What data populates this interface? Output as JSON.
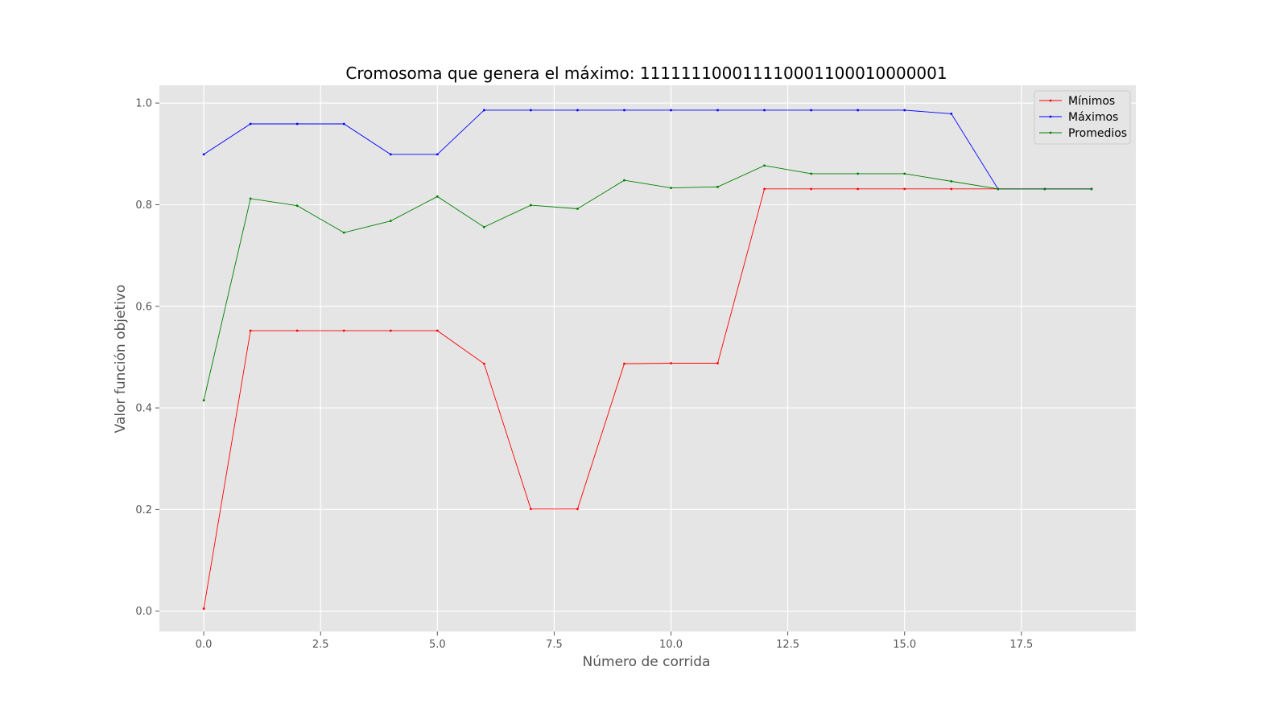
{
  "chart_data": {
    "type": "line",
    "title": "Cromosoma que genera el máximo: 111111100011110001100010000001",
    "xlabel": "Número de corrida",
    "ylabel": "Valor función objetivo",
    "xlim": [
      -0.95,
      19.95
    ],
    "ylim": [
      -0.04,
      1.035
    ],
    "xticks": [
      0.0,
      2.5,
      5.0,
      7.5,
      10.0,
      12.5,
      15.0,
      17.5
    ],
    "xtick_labels": [
      "0.0",
      "2.5",
      "5.0",
      "7.5",
      "10.0",
      "12.5",
      "15.0",
      "17.5"
    ],
    "yticks": [
      0.0,
      0.2,
      0.4,
      0.6,
      0.8,
      1.0
    ],
    "ytick_labels": [
      "0.0",
      "0.2",
      "0.4",
      "0.6",
      "0.8",
      "1.0"
    ],
    "grid": true,
    "legend_position": "top-right",
    "x": [
      0,
      1,
      2,
      3,
      4,
      5,
      6,
      7,
      8,
      9,
      10,
      11,
      12,
      13,
      14,
      15,
      16,
      17,
      18,
      19
    ],
    "series": [
      {
        "name": "Mínimos",
        "color": "#ff0000",
        "values": [
          0.005,
          0.552,
          0.552,
          0.552,
          0.552,
          0.552,
          0.487,
          0.201,
          0.201,
          0.487,
          0.488,
          0.488,
          0.831,
          0.831,
          0.831,
          0.831,
          0.831,
          0.831,
          0.831,
          0.831
        ]
      },
      {
        "name": "Máximos",
        "color": "#0000ff",
        "values": [
          0.899,
          0.959,
          0.959,
          0.959,
          0.899,
          0.899,
          0.986,
          0.986,
          0.986,
          0.986,
          0.986,
          0.986,
          0.986,
          0.986,
          0.986,
          0.986,
          0.979,
          0.831,
          0.831,
          0.831
        ]
      },
      {
        "name": "Promedios",
        "color": "#008000",
        "values": [
          0.415,
          0.812,
          0.798,
          0.745,
          0.768,
          0.816,
          0.756,
          0.799,
          0.792,
          0.848,
          0.833,
          0.835,
          0.877,
          0.861,
          0.861,
          0.861,
          0.846,
          0.831,
          0.831,
          0.831
        ]
      }
    ]
  }
}
